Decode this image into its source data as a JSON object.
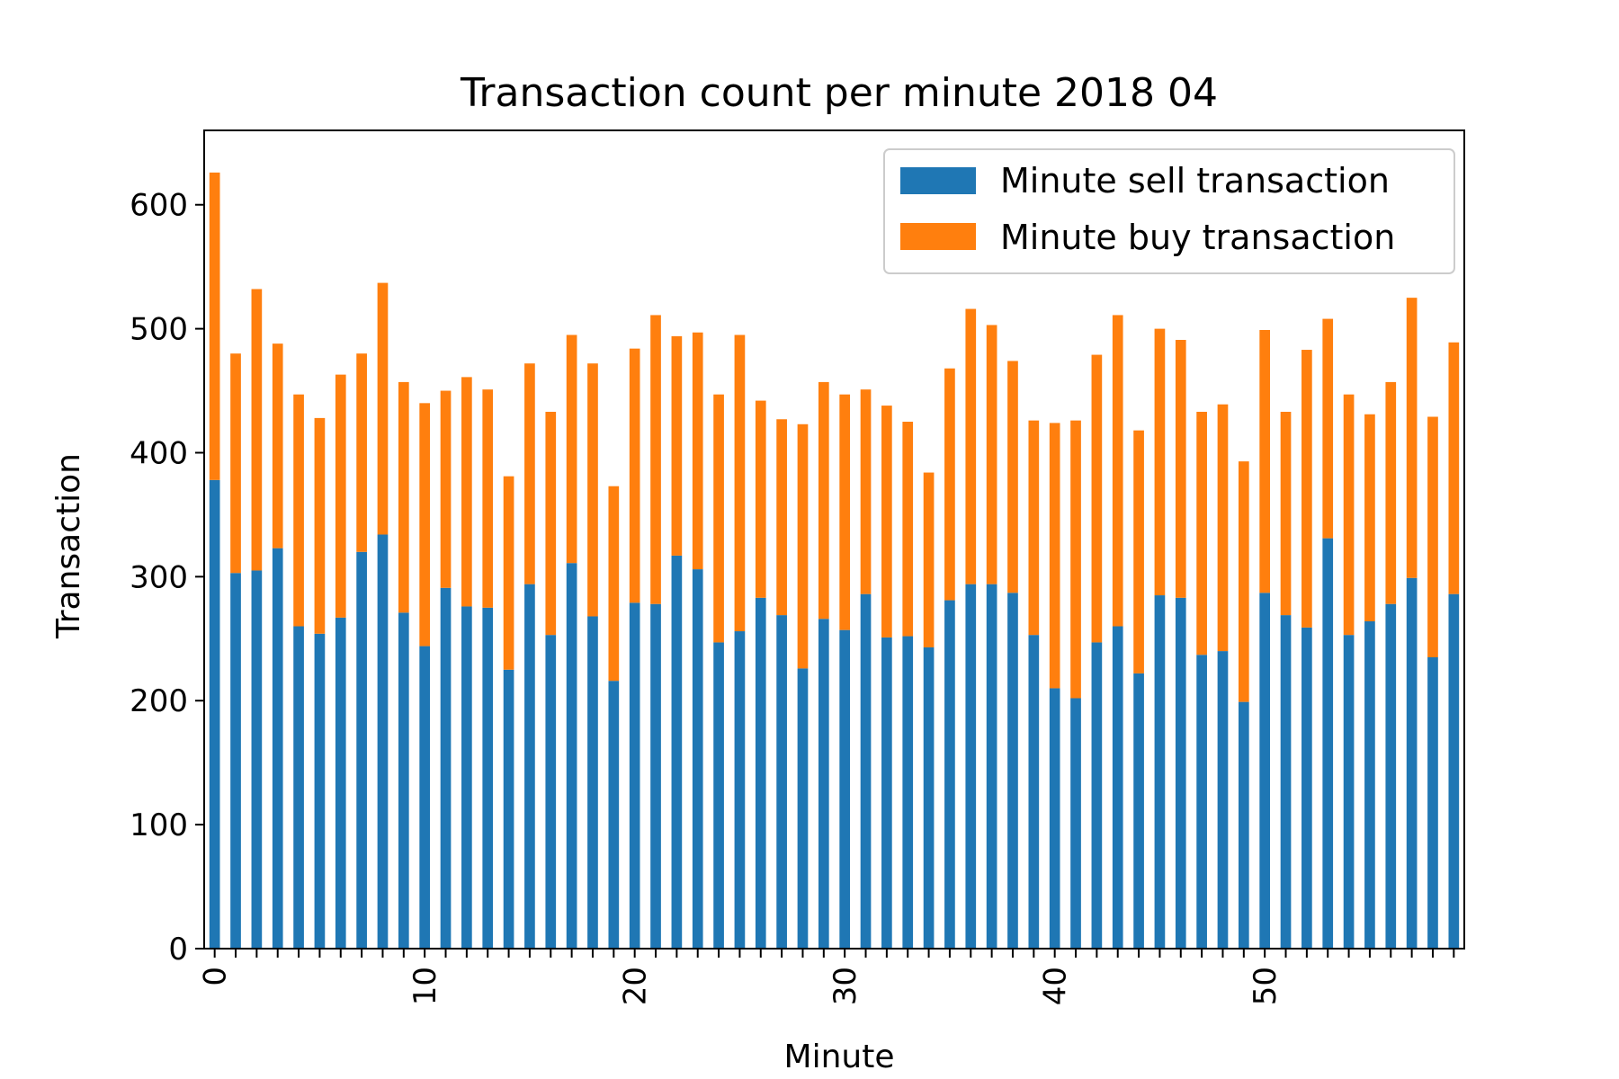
{
  "chart_data": {
    "type": "bar",
    "stacked": true,
    "title": "Transaction count per minute 2018 04",
    "xlabel": "Minute",
    "ylabel": "Transaction",
    "ylim": [
      0,
      660
    ],
    "yticks": [
      0,
      100,
      200,
      300,
      400,
      500,
      600
    ],
    "xtick_labels": [
      "0",
      "10",
      "20",
      "30",
      "40",
      "50"
    ],
    "xtick_label_rotation": 90,
    "grid": false,
    "legend_position": "top-right",
    "colors": {
      "sell": "#1f77b4",
      "buy": "#ff7f0e"
    },
    "categories": [
      0,
      1,
      2,
      3,
      4,
      5,
      6,
      7,
      8,
      9,
      10,
      11,
      12,
      13,
      14,
      15,
      16,
      17,
      18,
      19,
      20,
      21,
      22,
      23,
      24,
      25,
      26,
      27,
      28,
      29,
      30,
      31,
      32,
      33,
      34,
      35,
      36,
      37,
      38,
      39,
      40,
      41,
      42,
      43,
      44,
      45,
      46,
      47,
      48,
      49,
      50,
      51,
      52,
      53,
      54,
      55,
      56,
      57,
      58,
      59
    ],
    "series": [
      {
        "name": "Minute sell transaction",
        "values": [
          378,
          303,
          305,
          323,
          260,
          254,
          267,
          320,
          334,
          271,
          244,
          291,
          276,
          275,
          225,
          294,
          253,
          311,
          268,
          216,
          279,
          278,
          317,
          306,
          247,
          256,
          283,
          269,
          226,
          266,
          257,
          286,
          251,
          252,
          243,
          281,
          294,
          294,
          287,
          253,
          210,
          202,
          247,
          260,
          222,
          285,
          283,
          237,
          240,
          199,
          287,
          269,
          259,
          331,
          253,
          264,
          278,
          299,
          235,
          286
        ]
      },
      {
        "name": "Minute buy transaction",
        "values": [
          248,
          177,
          227,
          165,
          187,
          174,
          196,
          160,
          203,
          186,
          196,
          159,
          185,
          176,
          156,
          178,
          180,
          184,
          204,
          157,
          205,
          233,
          177,
          191,
          200,
          239,
          159,
          158,
          197,
          191,
          190,
          165,
          187,
          173,
          141,
          187,
          222,
          209,
          187,
          173,
          214,
          224,
          232,
          251,
          196,
          215,
          208,
          196,
          199,
          194,
          212,
          164,
          224,
          177,
          194,
          167,
          179,
          226,
          194,
          203
        ]
      }
    ]
  }
}
